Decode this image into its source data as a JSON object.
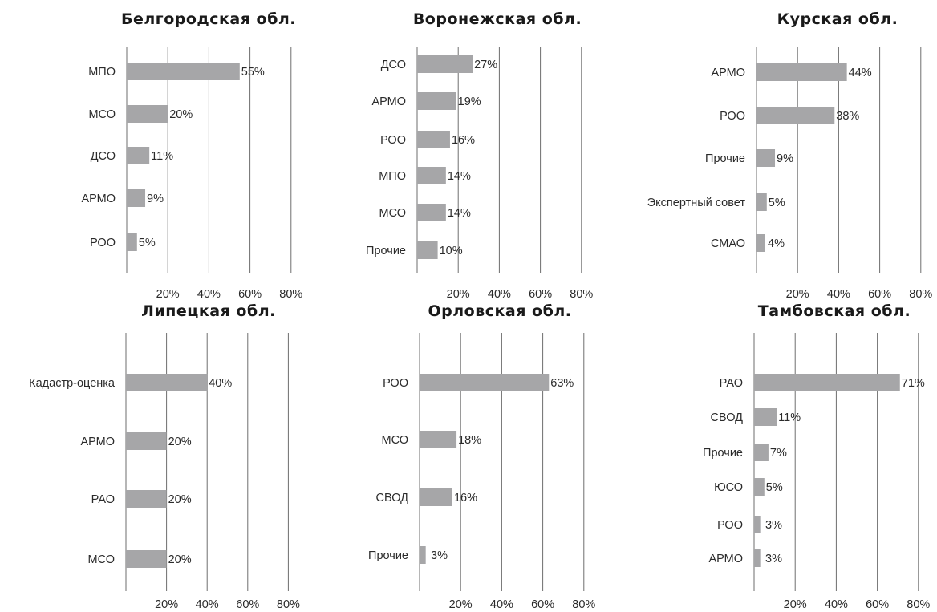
{
  "colors": {
    "bar": "#a6a6a8",
    "grid": "#6e6e6e",
    "text": "#2b2b2b"
  },
  "chart_data": [
    {
      "type": "bar",
      "orientation": "horizontal",
      "title": "Белгородская обл.",
      "categories": [
        "МПО",
        "МСО",
        "ДСО",
        "АРМО",
        "РОО"
      ],
      "values": [
        55,
        20,
        11,
        9,
        5
      ],
      "value_labels": [
        "55%",
        "20%",
        "11%",
        "9%",
        "5%"
      ],
      "xlim": [
        0,
        80
      ],
      "xticks": [
        20,
        40,
        60,
        80
      ],
      "xtick_labels": [
        "20%",
        "40%",
        "60%",
        "80%"
      ],
      "grid": true
    },
    {
      "type": "bar",
      "orientation": "horizontal",
      "title": "Воронежская обл.",
      "categories": [
        "ДСО",
        "АРМО",
        "РОО",
        "МПО",
        "МСО",
        "Прочие"
      ],
      "values": [
        27,
        19,
        16,
        14,
        14,
        10
      ],
      "value_labels": [
        "27%",
        "19%",
        "16%",
        "14%",
        "14%",
        "10%"
      ],
      "xlim": [
        0,
        80
      ],
      "xticks": [
        20,
        40,
        60,
        80
      ],
      "xtick_labels": [
        "20%",
        "40%",
        "60%",
        "80%"
      ],
      "grid": true
    },
    {
      "type": "bar",
      "orientation": "horizontal",
      "title": "Курская обл.",
      "categories": [
        "АРМО",
        "РОО",
        "Прочие",
        "Экспертный совет",
        "СМАО"
      ],
      "values": [
        44,
        38,
        9,
        5,
        4
      ],
      "value_labels": [
        "44%",
        "38%",
        "9%",
        "5%",
        "4%"
      ],
      "xlim": [
        0,
        80
      ],
      "xticks": [
        20,
        40,
        60,
        80
      ],
      "xtick_labels": [
        "20%",
        "40%",
        "60%",
        "80%"
      ],
      "grid": true
    },
    {
      "type": "bar",
      "orientation": "horizontal",
      "title": "Липецкая обл.",
      "categories": [
        "Кадастр-оценка",
        "АРМО",
        "РАО",
        "МСО"
      ],
      "values": [
        40,
        20,
        20,
        20
      ],
      "value_labels": [
        "40%",
        "20%",
        "20%",
        "20%"
      ],
      "xlim": [
        0,
        80
      ],
      "xticks": [
        20,
        40,
        60,
        80
      ],
      "xtick_labels": [
        "20%",
        "40%",
        "60%",
        "80%"
      ],
      "grid": true
    },
    {
      "type": "bar",
      "orientation": "horizontal",
      "title": "Орловская обл.",
      "categories": [
        "РОО",
        "МСО",
        "СВОД",
        "Прочие"
      ],
      "values": [
        63,
        18,
        16,
        3
      ],
      "value_labels": [
        "63%",
        "18%",
        "16%",
        "3%"
      ],
      "xlim": [
        0,
        80
      ],
      "xticks": [
        20,
        40,
        60,
        80
      ],
      "xtick_labels": [
        "20%",
        "40%",
        "60%",
        "80%"
      ],
      "grid": true
    },
    {
      "type": "bar",
      "orientation": "horizontal",
      "title": "Тамбовская обл.",
      "categories": [
        "РАО",
        "СВОД",
        "Прочие",
        "ЮСО",
        "РОО",
        "АРМО"
      ],
      "values": [
        71,
        11,
        7,
        5,
        3,
        3
      ],
      "value_labels": [
        "71%",
        "11%",
        "7%",
        "5%",
        "3%",
        "3%"
      ],
      "xlim": [
        0,
        80
      ],
      "xticks": [
        20,
        40,
        60,
        80
      ],
      "xtick_labels": [
        "20%",
        "40%",
        "60%",
        "80%"
      ],
      "grid": true
    }
  ]
}
